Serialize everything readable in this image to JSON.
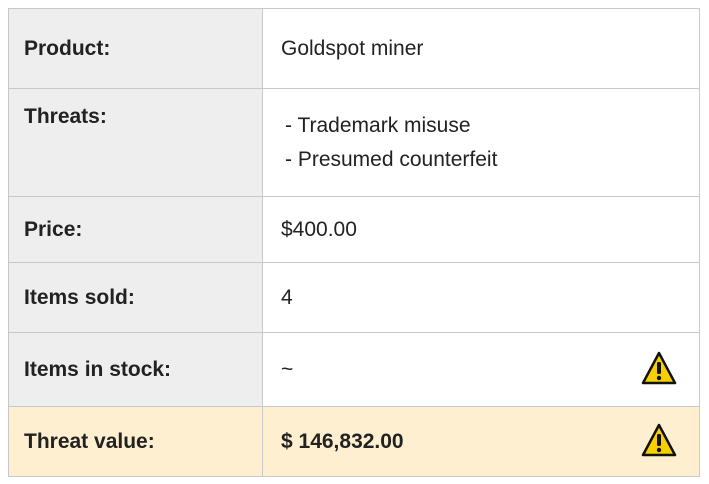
{
  "table": {
    "rows": [
      {
        "label": "Product:",
        "value": "Goldspot miner"
      },
      {
        "label": "Threats:",
        "value": [
          "- Trademark misuse",
          "- Presumed counterfeit"
        ]
      },
      {
        "label": "Price:",
        "value": "$400.00"
      },
      {
        "label": "Items sold:",
        "value": "4"
      },
      {
        "label": "Items in stock:",
        "value": "~"
      },
      {
        "label": "Threat value:",
        "value": "$ 146,832.00"
      }
    ]
  }
}
